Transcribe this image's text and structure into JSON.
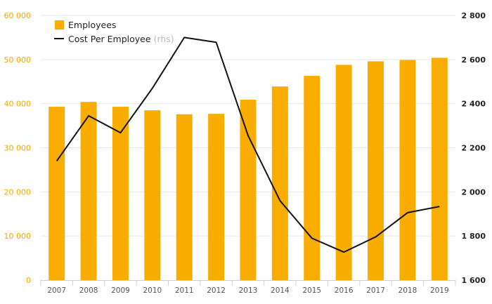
{
  "chart_data": {
    "type": "bar",
    "categories": [
      "2007",
      "2008",
      "2009",
      "2010",
      "2011",
      "2012",
      "2013",
      "2014",
      "2015",
      "2016",
      "2017",
      "2018",
      "2019"
    ],
    "series": [
      {
        "name": "Employees",
        "type": "bar",
        "axis": "left",
        "color": "#f9ad00",
        "values": [
          39300,
          40400,
          39300,
          38500,
          37600,
          37700,
          40900,
          43900,
          46300,
          48800,
          49600,
          49900,
          50400
        ]
      },
      {
        "name": "Cost Per Employee",
        "name_note": "(rhs)",
        "type": "line",
        "axis": "right",
        "color": "#111111",
        "values": [
          2140,
          2345,
          2268,
          2470,
          2700,
          2678,
          2255,
          1960,
          1790,
          1727,
          1796,
          1906,
          1934
        ]
      }
    ],
    "y_left": {
      "ylim": [
        0,
        60000
      ],
      "ticks": [
        0,
        10000,
        20000,
        30000,
        40000,
        50000,
        60000
      ],
      "tick_labels": [
        "0",
        "10 000",
        "20 000",
        "30 000",
        "40 000",
        "50 000",
        "60 000"
      ],
      "color": "#f5a800"
    },
    "y_right": {
      "ylim": [
        1600,
        2800
      ],
      "ticks": [
        1600,
        1800,
        2000,
        2200,
        2400,
        2600,
        2800
      ],
      "tick_labels": [
        "1 600",
        "1 800",
        "2 000",
        "2 200",
        "2 400",
        "2 600",
        "2 800"
      ],
      "color": "#222222"
    },
    "grid": true,
    "legend_position": "top-left"
  }
}
